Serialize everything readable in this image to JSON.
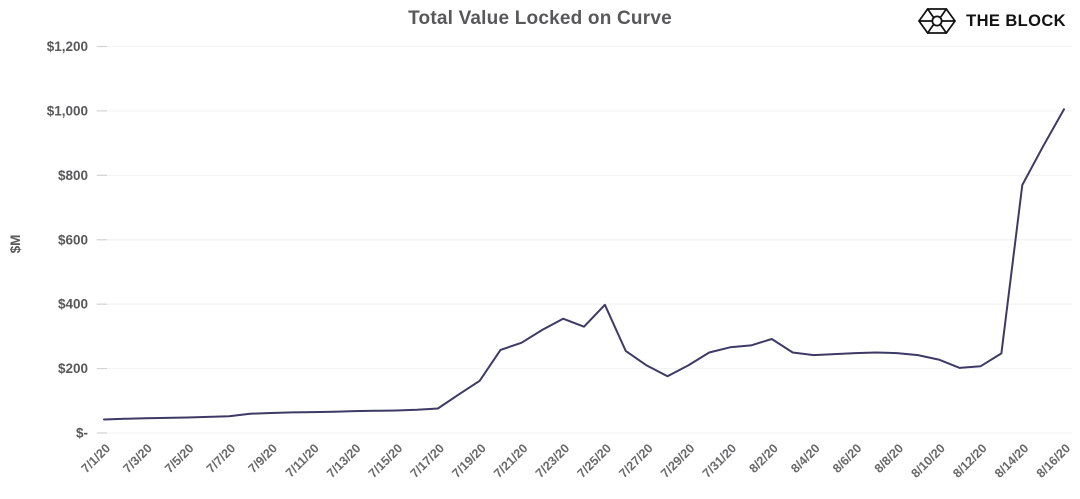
{
  "header": {
    "title": "Total Value Locked on Curve",
    "brand": "THE BLOCK"
  },
  "colors": {
    "line": "#3d3a65",
    "grid": "#f3f3f4",
    "tick": "#d4d4d8",
    "axis_text": "#59595b",
    "title_text": "#58585a",
    "brand_text": "#121212"
  },
  "chart_data": {
    "type": "line",
    "title": "Total Value Locked on Curve",
    "xlabel": "",
    "ylabel": "$M",
    "legend": "none",
    "grid": "horizontal-faint",
    "ylim": [
      0,
      1200
    ],
    "x_tick_every": 2,
    "y_ticks": [
      {
        "label": "$-",
        "value": 0
      },
      {
        "label": "$200",
        "value": 200
      },
      {
        "label": "$400",
        "value": 400
      },
      {
        "label": "$600",
        "value": 600
      },
      {
        "label": "$800",
        "value": 800
      },
      {
        "label": "$1,000",
        "value": 1000
      },
      {
        "label": "$1,200",
        "value": 1200
      }
    ],
    "x": [
      "7/1/20",
      "7/2/20",
      "7/3/20",
      "7/4/20",
      "7/5/20",
      "7/6/20",
      "7/7/20",
      "7/8/20",
      "7/9/20",
      "7/10/20",
      "7/11/20",
      "7/12/20",
      "7/13/20",
      "7/14/20",
      "7/15/20",
      "7/16/20",
      "7/17/20",
      "7/18/20",
      "7/19/20",
      "7/20/20",
      "7/21/20",
      "7/22/20",
      "7/23/20",
      "7/24/20",
      "7/25/20",
      "7/26/20",
      "7/27/20",
      "7/28/20",
      "7/29/20",
      "7/30/20",
      "7/31/20",
      "8/1/20",
      "8/2/20",
      "8/3/20",
      "8/4/20",
      "8/5/20",
      "8/6/20",
      "8/7/20",
      "8/8/20",
      "8/9/20",
      "8/10/20",
      "8/11/20",
      "8/12/20",
      "8/13/20",
      "8/14/20",
      "8/15/20",
      "8/16/20"
    ],
    "series": [
      {
        "name": "Total Value Locked ($M)",
        "values": [
          42,
          44,
          46,
          47,
          48,
          50,
          52,
          60,
          62,
          64,
          65,
          66,
          68,
          69,
          70,
          72,
          76,
          120,
          162,
          258,
          280,
          320,
          355,
          330,
          398,
          255,
          210,
          176,
          210,
          250,
          266,
          272,
          292,
          250,
          242,
          245,
          248,
          250,
          248,
          242,
          228,
          202,
          207,
          247,
          770,
          890,
          1005
        ]
      }
    ]
  }
}
